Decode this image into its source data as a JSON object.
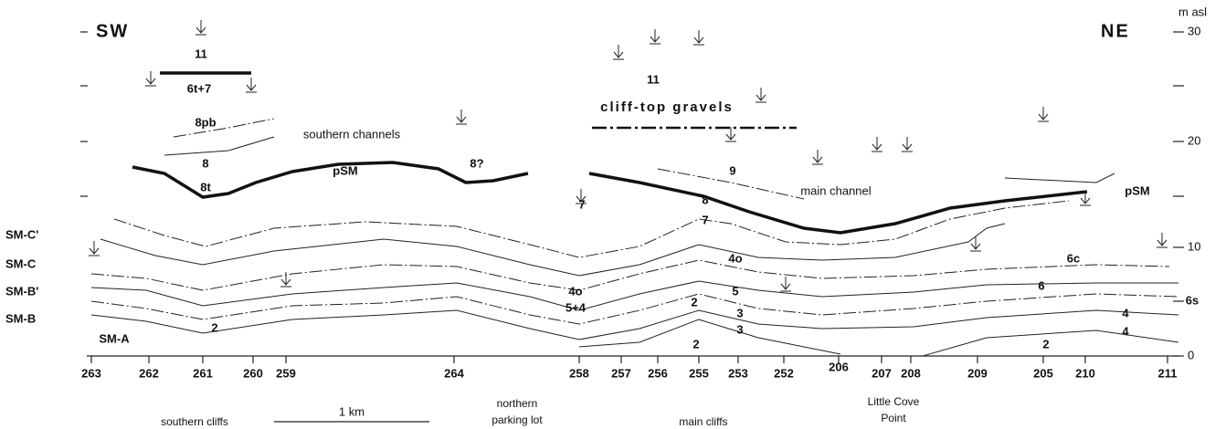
{
  "header": {
    "left": "SW",
    "right": "NE"
  },
  "elevation_axis": {
    "unit": "m asl",
    "ticks": [
      "30",
      "20",
      "10",
      "0"
    ]
  },
  "sections": [
    "263",
    "262",
    "261",
    "260",
    "259",
    "264",
    "258",
    "257",
    "256",
    "255",
    "253",
    "252",
    "206",
    "207",
    "208",
    "209",
    "205",
    "210",
    "211"
  ],
  "localities": [
    [
      "southern cliffs"
    ],
    [
      "northern",
      "parking lot"
    ],
    [
      "main cliffs"
    ],
    [
      "Little Cove",
      "Point"
    ]
  ],
  "scale_bar": "1 km",
  "left_labels": [
    "SM-C'",
    "SM-C",
    "SM-B'",
    "SM-B"
  ],
  "units": [
    "11",
    "6t+7",
    "8pb",
    "southern channels",
    "8",
    "8t",
    "pSM",
    "8?",
    "11",
    "cliff-top gravels",
    "9",
    "7",
    "8",
    "7",
    "main channel",
    "pSM",
    "6c",
    "4o",
    "4o",
    "5+4",
    "5",
    "2",
    "3",
    "3",
    "6",
    "6s",
    "4",
    "4",
    "2",
    "2",
    "2",
    "SM-A"
  ]
}
